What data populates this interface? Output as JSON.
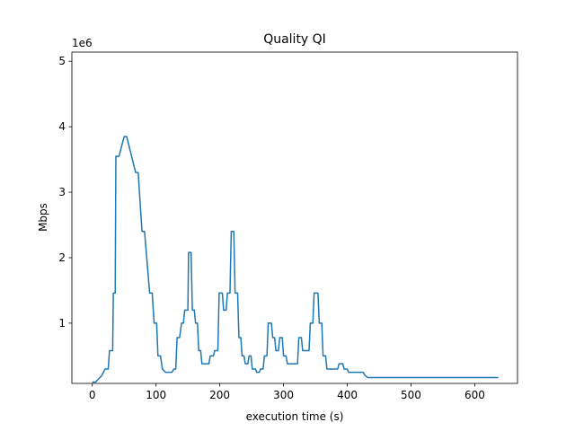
{
  "chart_data": {
    "type": "line",
    "title": "Quality QI",
    "x_label": "execution time (s)",
    "y_label": "Mbps",
    "y_offset_label": "1e6",
    "xlim": [
      -32,
      667
    ],
    "ylim": [
      80000,
      5140000
    ],
    "xticks": [
      0,
      100,
      200,
      300,
      400,
      500,
      600
    ],
    "yticks": [
      {
        "value": 1000000,
        "label": "1"
      },
      {
        "value": 2000000,
        "label": "2"
      },
      {
        "value": 3000000,
        "label": "3"
      },
      {
        "value": 4000000,
        "label": "4"
      },
      {
        "value": 5000000,
        "label": "5"
      }
    ],
    "grid": false,
    "x": [
      0,
      5,
      10,
      15,
      20,
      25,
      27,
      32,
      33,
      36,
      37,
      42,
      50,
      54,
      68,
      72,
      78,
      82,
      90,
      94,
      97,
      101,
      103,
      107,
      110,
      115,
      125,
      128,
      131,
      133,
      137,
      140,
      143,
      145,
      150,
      151,
      155,
      157,
      160,
      162,
      165,
      167,
      170,
      172,
      183,
      185,
      190,
      192,
      197,
      199,
      204,
      206,
      210,
      212,
      216,
      218,
      222,
      224,
      228,
      230,
      233,
      235,
      238,
      240,
      244,
      246,
      249,
      251,
      256,
      258,
      262,
      264,
      268,
      270,
      274,
      276,
      281,
      283,
      286,
      288,
      292,
      294,
      298,
      300,
      304,
      306,
      322,
      324,
      328,
      330,
      340,
      342,
      346,
      348,
      354,
      356,
      360,
      362,
      366,
      368,
      385,
      387,
      393,
      395,
      400,
      402,
      425,
      428,
      432,
      637
    ],
    "series": [
      {
        "name": "Quality QI",
        "color": "#1f77b4",
        "values": [
          100000,
          100000,
          150000,
          200000,
          300000,
          300000,
          580000,
          580000,
          1460000,
          1460000,
          3550000,
          3550000,
          3850000,
          3850000,
          3300000,
          3300000,
          2400000,
          2400000,
          1460000,
          1460000,
          1000000,
          1000000,
          500000,
          500000,
          300000,
          250000,
          250000,
          300000,
          300000,
          780000,
          780000,
          1000000,
          1000000,
          1200000,
          1200000,
          2080000,
          2080000,
          1200000,
          1200000,
          1000000,
          1000000,
          580000,
          580000,
          380000,
          380000,
          500000,
          500000,
          580000,
          580000,
          1460000,
          1460000,
          1200000,
          1200000,
          1460000,
          1460000,
          2400000,
          2400000,
          1460000,
          1460000,
          780000,
          780000,
          500000,
          500000,
          380000,
          380000,
          500000,
          500000,
          300000,
          300000,
          250000,
          250000,
          300000,
          300000,
          500000,
          500000,
          1000000,
          1000000,
          780000,
          780000,
          580000,
          580000,
          780000,
          780000,
          500000,
          500000,
          380000,
          380000,
          780000,
          780000,
          580000,
          580000,
          1000000,
          1000000,
          1460000,
          1460000,
          1000000,
          1000000,
          500000,
          500000,
          300000,
          300000,
          380000,
          380000,
          300000,
          300000,
          250000,
          250000,
          200000,
          170000,
          170000
        ]
      }
    ]
  }
}
